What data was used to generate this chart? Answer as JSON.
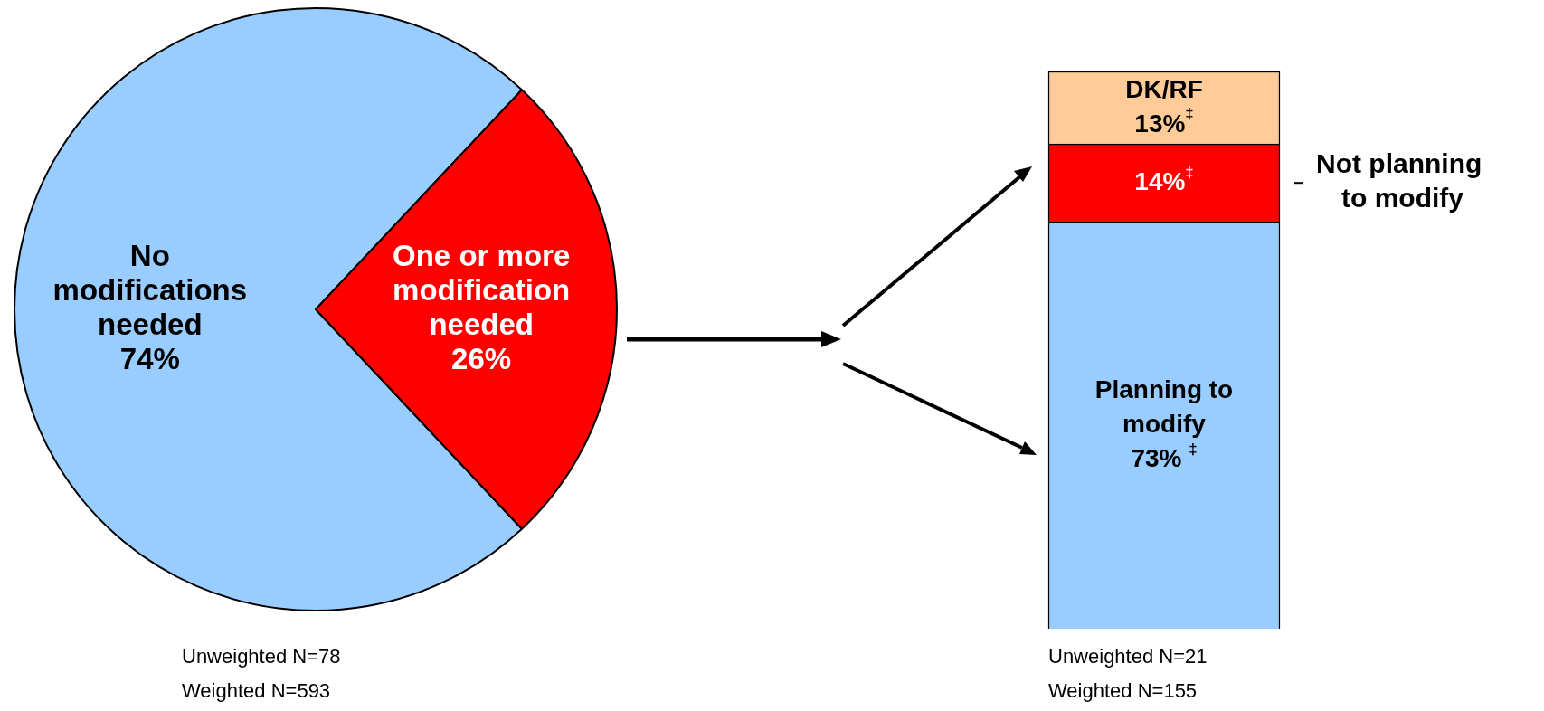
{
  "chart_data": [
    {
      "type": "pie",
      "categories": [
        "No modifications needed",
        "One or more modification needed"
      ],
      "values": [
        74,
        26
      ],
      "colors": [
        "#99ccff",
        "#ff0000"
      ],
      "value_labels": [
        "74%",
        "26%"
      ],
      "legend": false,
      "annotations": [
        "Unweighted N=78",
        "Weighted N=593"
      ]
    },
    {
      "type": "bar",
      "stacked": true,
      "categories": [
        null
      ],
      "ylim": [
        0,
        100
      ],
      "tick_labels": false,
      "legend": false,
      "series": [
        {
          "name": "Planning to modify",
          "color": "#99ccff",
          "values": [
            73
          ],
          "value_labels": [
            "73% $^{‡}$"
          ]
        },
        {
          "name": "Not planning to modify",
          "color": "#ff0000",
          "values": [
            14
          ],
          "value_labels": [
            "14%$^{‡}$"
          ]
        },
        {
          "name": "DK/RF",
          "color": "#ffcc99",
          "values": [
            13
          ],
          "value_labels": [
            "13%$^{‡}$"
          ]
        }
      ],
      "annotations": [
        "Unweighted N=21",
        "Weighted N=155"
      ]
    }
  ]
}
